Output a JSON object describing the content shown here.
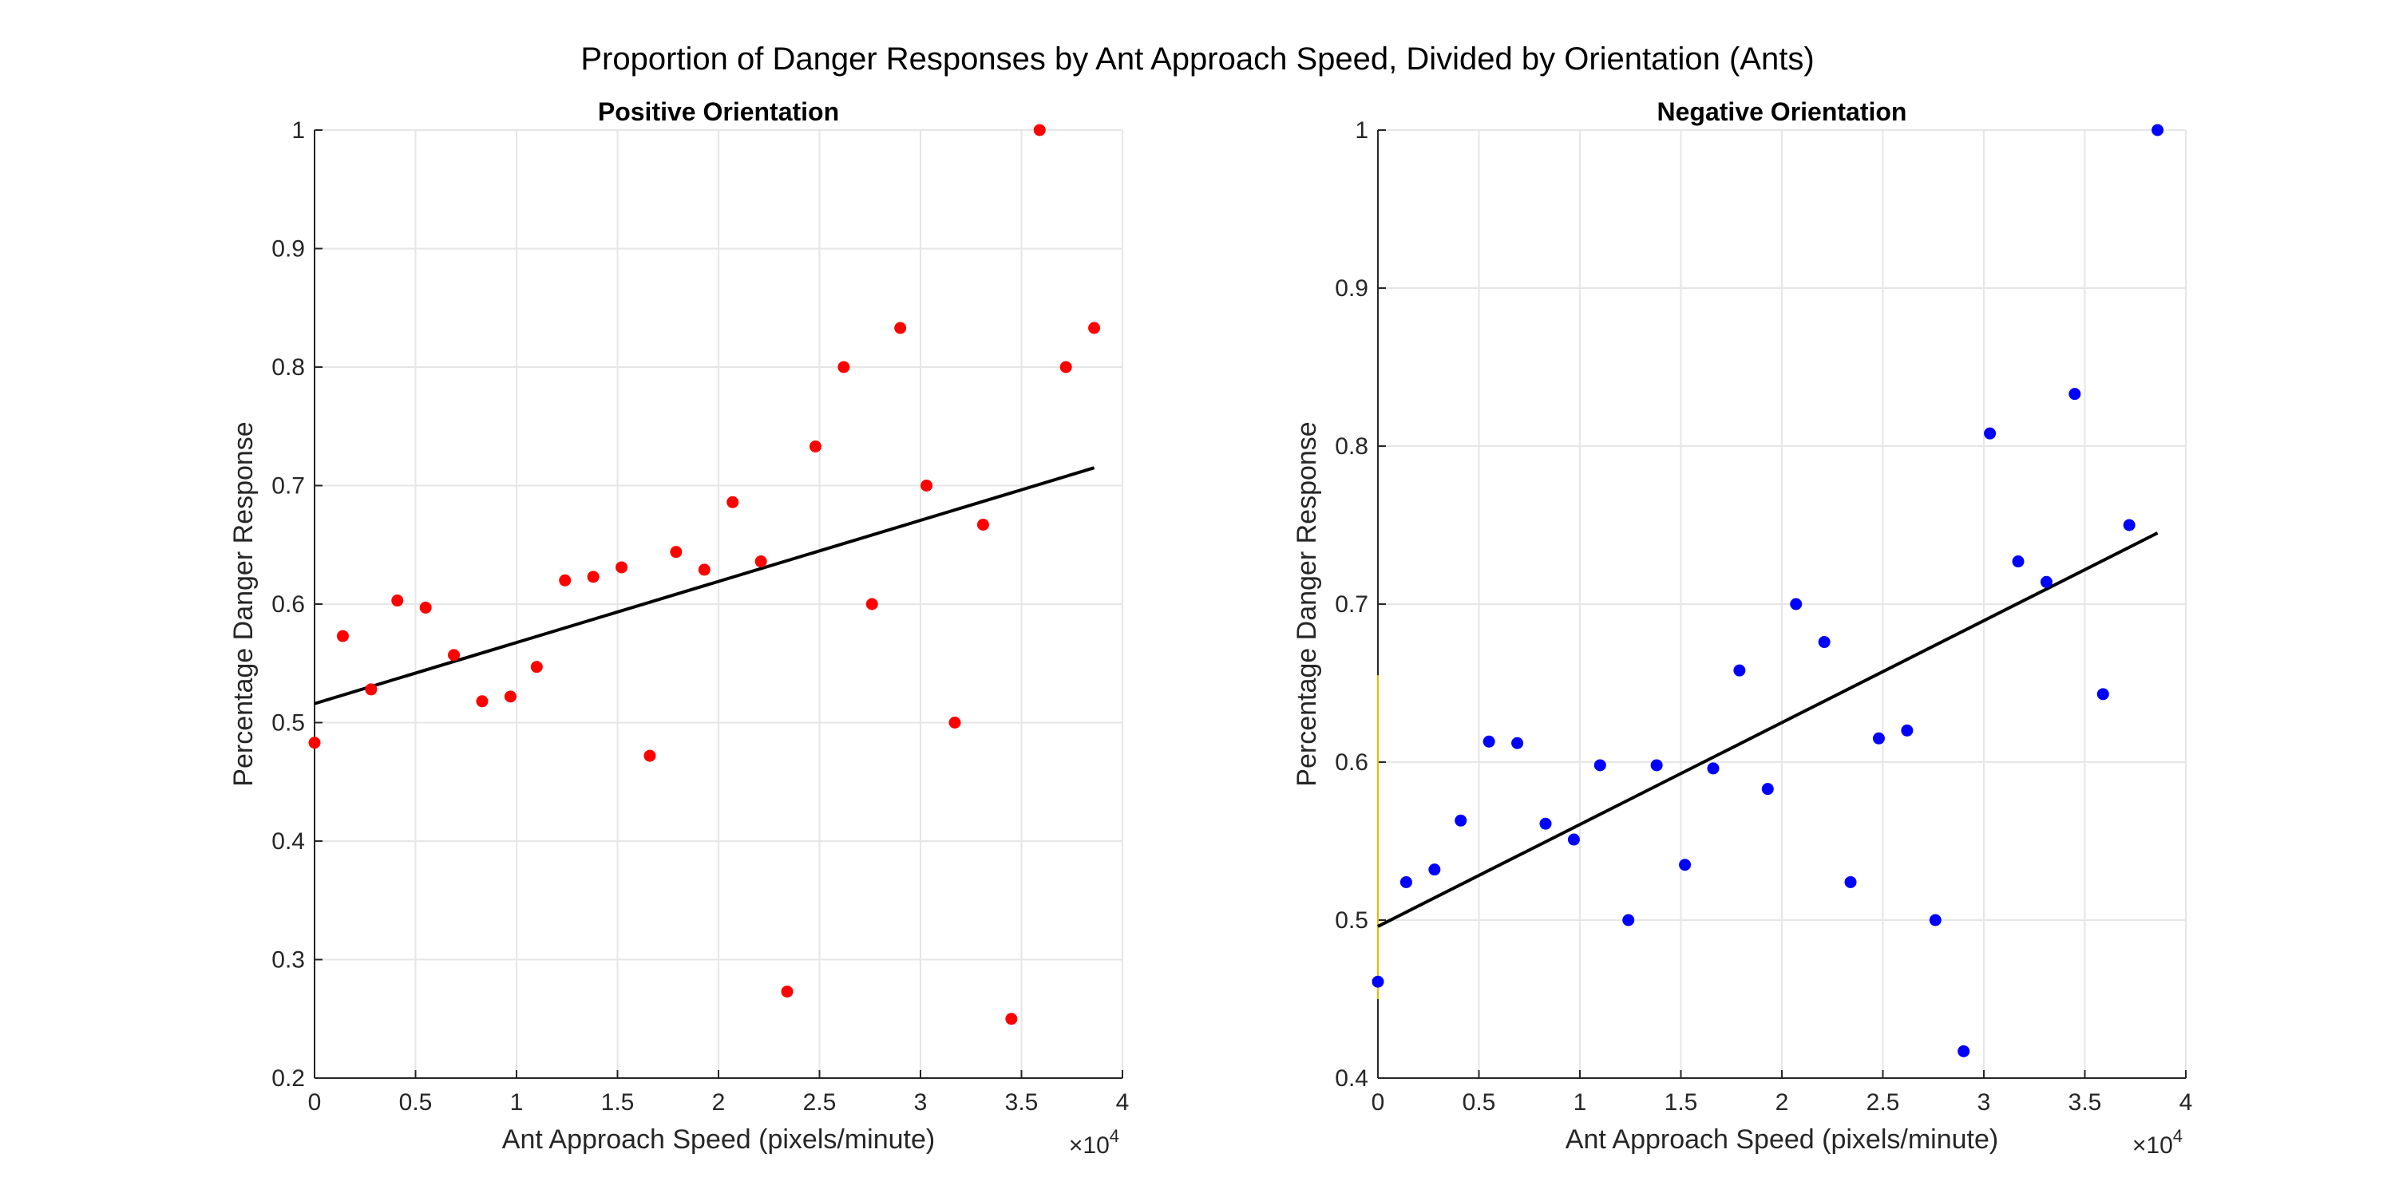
{
  "figure": {
    "title": "Proportion of Danger Responses by Ant Approach Speed, Divided by Orientation (Ants)"
  },
  "chart_data": [
    {
      "type": "scatter",
      "title": "Positive Orientation",
      "xlabel": "Ant Approach Speed (pixels/minute)",
      "ylabel": "Percentage Danger Response",
      "x_exponent_label": "×10",
      "x_exponent_power": "4",
      "x_multiplier": 10000,
      "xlim": [
        0,
        40000
      ],
      "ylim": [
        0.2,
        1.0
      ],
      "xticks": [
        0,
        0.5,
        1,
        1.5,
        2,
        2.5,
        3,
        3.5,
        4
      ],
      "xtick_labels": [
        "0",
        "0.5",
        "1",
        "1.5",
        "2",
        "2.5",
        "3",
        "3.5",
        "4"
      ],
      "yticks": [
        0.2,
        0.3,
        0.4,
        0.5,
        0.6,
        0.7,
        0.8,
        0.9,
        1.0
      ],
      "ytick_labels": [
        "0.2",
        "0.3",
        "0.4",
        "0.5",
        "0.6",
        "0.7",
        "0.8",
        "0.9",
        "1"
      ],
      "grid": true,
      "marker_color": "#ff0000",
      "line_color": "#000000",
      "points": [
        {
          "x": 0,
          "y": 0.483
        },
        {
          "x": 1400,
          "y": 0.573
        },
        {
          "x": 2800,
          "y": 0.528
        },
        {
          "x": 4100,
          "y": 0.603
        },
        {
          "x": 5500,
          "y": 0.597
        },
        {
          "x": 6900,
          "y": 0.557
        },
        {
          "x": 8300,
          "y": 0.518
        },
        {
          "x": 9700,
          "y": 0.522
        },
        {
          "x": 11000,
          "y": 0.547
        },
        {
          "x": 12400,
          "y": 0.62
        },
        {
          "x": 13800,
          "y": 0.623
        },
        {
          "x": 15200,
          "y": 0.631
        },
        {
          "x": 16600,
          "y": 0.472
        },
        {
          "x": 17900,
          "y": 0.644
        },
        {
          "x": 19300,
          "y": 0.629
        },
        {
          "x": 20700,
          "y": 0.686
        },
        {
          "x": 22100,
          "y": 0.636
        },
        {
          "x": 23400,
          "y": 0.273
        },
        {
          "x": 24800,
          "y": 0.733
        },
        {
          "x": 26200,
          "y": 0.8
        },
        {
          "x": 27600,
          "y": 0.6
        },
        {
          "x": 29000,
          "y": 0.833
        },
        {
          "x": 30300,
          "y": 0.7
        },
        {
          "x": 31700,
          "y": 0.5
        },
        {
          "x": 33100,
          "y": 0.667
        },
        {
          "x": 34500,
          "y": 0.25
        },
        {
          "x": 35900,
          "y": 1.0
        },
        {
          "x": 37200,
          "y": 0.8
        },
        {
          "x": 38600,
          "y": 0.833
        }
      ],
      "fit_line": {
        "x": [
          0,
          38600
        ],
        "y": [
          0.516,
          0.715
        ]
      }
    },
    {
      "type": "scatter",
      "title": "Negative Orientation",
      "xlabel": "Ant Approach Speed (pixels/minute)",
      "ylabel": "Percentage Danger Response",
      "x_exponent_label": "×10",
      "x_exponent_power": "4",
      "x_multiplier": 10000,
      "xlim": [
        0,
        40000
      ],
      "ylim": [
        0.4,
        1.0
      ],
      "xticks": [
        0,
        0.5,
        1,
        1.5,
        2,
        2.5,
        3,
        3.5,
        4
      ],
      "xtick_labels": [
        "0",
        "0.5",
        "1",
        "1.5",
        "2",
        "2.5",
        "3",
        "3.5",
        "4"
      ],
      "yticks": [
        0.4,
        0.5,
        0.6,
        0.7,
        0.8,
        0.9,
        1.0
      ],
      "ytick_labels": [
        "0.4",
        "0.5",
        "0.6",
        "0.7",
        "0.8",
        "0.9",
        "1"
      ],
      "grid": true,
      "marker_color": "#0000ff",
      "line_color": "#000000",
      "accent_color": "#f2b705",
      "accent_segment": {
        "x": [
          0,
          0
        ],
        "y": [
          0.45,
          0.655
        ]
      },
      "points": [
        {
          "x": 0,
          "y": 0.461
        },
        {
          "x": 1400,
          "y": 0.524
        },
        {
          "x": 2800,
          "y": 0.532
        },
        {
          "x": 4100,
          "y": 0.563
        },
        {
          "x": 5500,
          "y": 0.613
        },
        {
          "x": 6900,
          "y": 0.612
        },
        {
          "x": 8300,
          "y": 0.561
        },
        {
          "x": 9700,
          "y": 0.551
        },
        {
          "x": 11000,
          "y": 0.598
        },
        {
          "x": 12400,
          "y": 0.5
        },
        {
          "x": 13800,
          "y": 0.598
        },
        {
          "x": 15200,
          "y": 0.535
        },
        {
          "x": 16600,
          "y": 0.596
        },
        {
          "x": 17900,
          "y": 0.658
        },
        {
          "x": 19300,
          "y": 0.583
        },
        {
          "x": 20700,
          "y": 0.7
        },
        {
          "x": 22100,
          "y": 0.676
        },
        {
          "x": 23400,
          "y": 0.524
        },
        {
          "x": 24800,
          "y": 0.615
        },
        {
          "x": 26200,
          "y": 0.62
        },
        {
          "x": 27600,
          "y": 0.5
        },
        {
          "x": 29000,
          "y": 0.417
        },
        {
          "x": 30300,
          "y": 0.808
        },
        {
          "x": 31700,
          "y": 0.727
        },
        {
          "x": 33100,
          "y": 0.714
        },
        {
          "x": 34500,
          "y": 0.833
        },
        {
          "x": 35900,
          "y": 0.643
        },
        {
          "x": 37200,
          "y": 0.75
        },
        {
          "x": 38600,
          "y": 1.0
        }
      ],
      "fit_line": {
        "x": [
          0,
          38600
        ],
        "y": [
          0.496,
          0.745
        ]
      }
    }
  ]
}
